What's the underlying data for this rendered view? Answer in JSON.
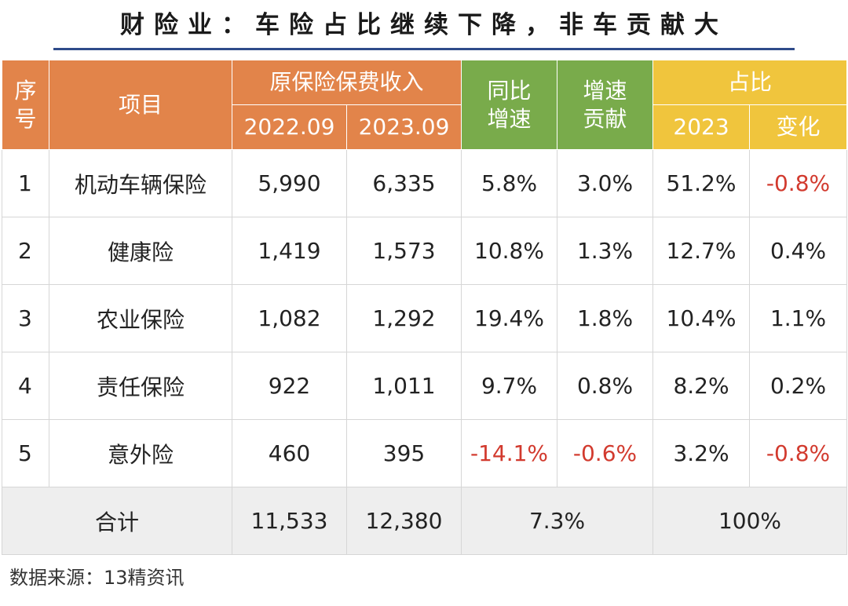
{
  "title": "财险业：车险占比继续下降，非车贡献大",
  "header": {
    "seq": [
      "序",
      "号"
    ],
    "item": "项目",
    "premium_group": "原保险保费收入",
    "year_prev": "2022.09",
    "year_curr": "2023.09",
    "yoy": [
      "同比",
      "增速"
    ],
    "contrib": [
      "增速",
      "贡献"
    ],
    "share_group": "占比",
    "share_year": "2023",
    "share_change": "变化"
  },
  "rows": [
    {
      "idx": "1",
      "name": "机动车辆保险",
      "prev": "5,990",
      "curr": "6,335",
      "yoy": "5.8%",
      "contrib": "3.0%",
      "share": "51.2%",
      "change": "-0.8%"
    },
    {
      "idx": "2",
      "name": "健康险",
      "prev": "1,419",
      "curr": "1,573",
      "yoy": "10.8%",
      "contrib": "1.3%",
      "share": "12.7%",
      "change": "0.4%"
    },
    {
      "idx": "3",
      "name": "农业保险",
      "prev": "1,082",
      "curr": "1,292",
      "yoy": "19.4%",
      "contrib": "1.8%",
      "share": "10.4%",
      "change": "1.1%"
    },
    {
      "idx": "4",
      "name": "责任保险",
      "prev": "922",
      "curr": "1,011",
      "yoy": "9.7%",
      "contrib": "0.8%",
      "share": "8.2%",
      "change": "0.2%"
    },
    {
      "idx": "5",
      "name": "意外险",
      "prev": "460",
      "curr": "395",
      "yoy": "-14.1%",
      "contrib": "-0.6%",
      "share": "3.2%",
      "change": "-0.8%"
    }
  ],
  "total": {
    "label": "合计",
    "prev": "11,533",
    "curr": "12,380",
    "growth": "7.3%",
    "share": "100%"
  },
  "source": "数据来源：13精资讯",
  "colors": {
    "orange_header": "#e2844a",
    "green_header": "#79ab4b",
    "yellow_header": "#f0c53d",
    "negative": "#d23a2e",
    "total_row": "#eeeeee"
  }
}
